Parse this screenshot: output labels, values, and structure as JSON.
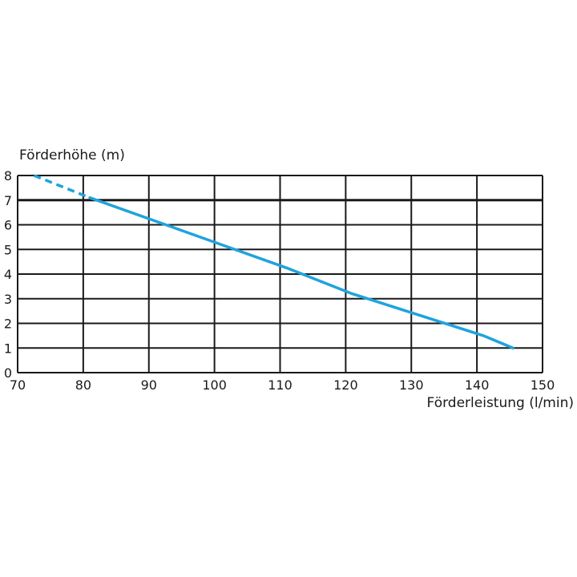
{
  "chart_data": {
    "type": "line",
    "xlabel": "Förderleistung (l/min)",
    "ylabel": "Förderhöhe (m)",
    "xlim": [
      70,
      150
    ],
    "ylim": [
      0,
      8
    ],
    "x_ticks": [
      "70",
      "80",
      "90",
      "100",
      "110",
      "120",
      "130",
      "140",
      "150"
    ],
    "y_ticks": [
      "0",
      "1",
      "2",
      "3",
      "4",
      "5",
      "6",
      "7",
      "8"
    ],
    "grid": true,
    "line_color": "#1fa3dc",
    "series": [
      {
        "x": [
          72.5,
          81,
          91,
          101,
          111,
          121,
          131,
          141,
          145.5
        ],
        "y": [
          8.0,
          7.1,
          6.15,
          5.2,
          4.25,
          3.2,
          2.35,
          1.5,
          1.0
        ],
        "dashed_until_x": 81
      }
    ]
  }
}
